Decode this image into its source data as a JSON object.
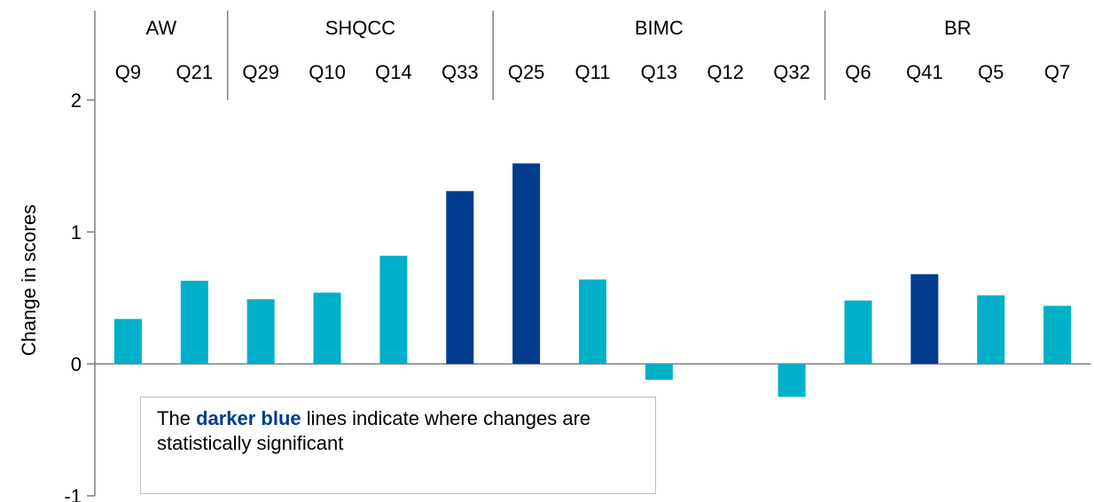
{
  "chart_data": {
    "type": "bar",
    "ylabel": "Change in scores",
    "xlabel": "",
    "ylim": [
      -1,
      2
    ],
    "yticks": [
      "2",
      "1",
      "0",
      "-1"
    ],
    "grid": false,
    "groups": [
      {
        "name": "AW",
        "categories": [
          "Q9",
          "Q21"
        ]
      },
      {
        "name": "SHQCC",
        "categories": [
          "Q29",
          "Q10",
          "Q14",
          "Q33"
        ]
      },
      {
        "name": "BIMC",
        "categories": [
          "Q25",
          "Q11",
          "Q13",
          "Q12",
          "Q32"
        ]
      },
      {
        "name": "BR",
        "categories": [
          "Q6",
          "Q41",
          "Q5",
          "Q7"
        ]
      }
    ],
    "categories": [
      "Q9",
      "Q21",
      "Q29",
      "Q10",
      "Q14",
      "Q33",
      "Q25",
      "Q11",
      "Q13",
      "Q12",
      "Q32",
      "Q6",
      "Q41",
      "Q5",
      "Q7"
    ],
    "values": [
      0.34,
      0.63,
      0.49,
      0.54,
      0.82,
      1.31,
      1.52,
      0.64,
      -0.12,
      0.0,
      -0.25,
      0.48,
      0.68,
      0.52,
      0.44
    ],
    "significant": [
      false,
      false,
      false,
      false,
      false,
      true,
      true,
      false,
      false,
      false,
      false,
      false,
      true,
      false,
      false
    ],
    "colors": {
      "significant": "#003b8e",
      "not_significant": "#00b0c8"
    }
  },
  "callout": {
    "prefix": "The ",
    "highlight": "darker blue",
    "suffix": " lines indicate where changes are statistically significant"
  }
}
